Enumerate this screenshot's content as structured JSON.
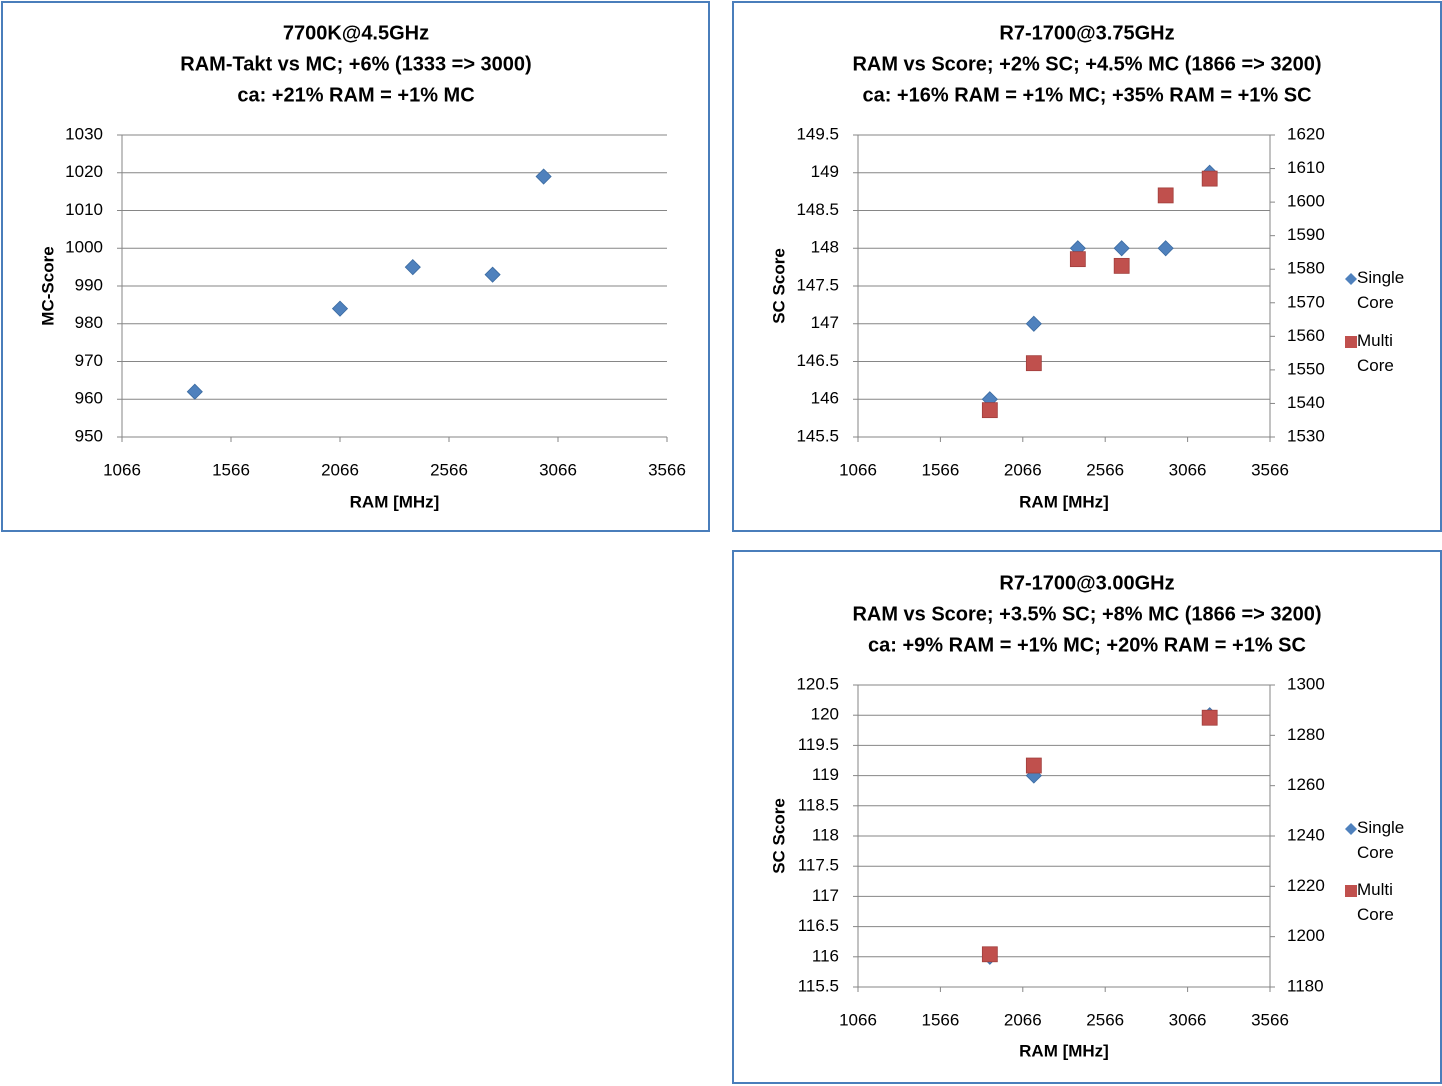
{
  "chart_data": [
    {
      "type": "scatter",
      "title_lines": [
        "7700K@4.5GHz",
        "RAM-Takt vs MC; +6% (1333 => 3000)",
        "ca: +21% RAM = +1% MC"
      ],
      "xlabel": "RAM [MHz]",
      "ylabel": "MC-Score",
      "y2label": "",
      "xlim": [
        1066,
        3566
      ],
      "xticks": [
        "1066",
        "1566",
        "2066",
        "2566",
        "3066",
        "3566"
      ],
      "ylim": [
        950,
        1030
      ],
      "yticks": [
        "950",
        "960",
        "970",
        "980",
        "990",
        "1000",
        "1010",
        "1020",
        "1030"
      ],
      "grid": true,
      "legend": [],
      "series": [
        {
          "name": "",
          "marker": "diamond",
          "color": "#4f81bd",
          "axis": "left",
          "x": [
            1400,
            2066,
            2400,
            2766,
            3000
          ],
          "y": [
            962,
            984,
            995,
            993,
            1019
          ]
        }
      ]
    },
    {
      "type": "scatter",
      "title_lines": [
        "R7-1700@3.75GHz",
        "RAM vs Score; +2% SC; +4.5% MC (1866 => 3200)",
        "ca: +16% RAM = +1% MC; +35% RAM = +1% SC"
      ],
      "xlabel": "RAM [MHz]",
      "ylabel": "SC Score",
      "y2label": "",
      "xlim": [
        1066,
        3566
      ],
      "xticks": [
        "1066",
        "1566",
        "2066",
        "2566",
        "3066",
        "3566"
      ],
      "ylim": [
        145.5,
        149.5
      ],
      "yticks": [
        "145.5",
        "146",
        "146.5",
        "147",
        "147.5",
        "148",
        "148.5",
        "149",
        "149.5"
      ],
      "y2lim": [
        1530,
        1620
      ],
      "y2ticks": [
        "1530",
        "1540",
        "1550",
        "1560",
        "1570",
        "1580",
        "1590",
        "1600",
        "1610",
        "1620"
      ],
      "grid": true,
      "legend": [
        "Single Core",
        "Multi Core"
      ],
      "series": [
        {
          "name": "Single Core",
          "marker": "diamond",
          "color": "#4f81bd",
          "axis": "left",
          "x": [
            1866,
            2133,
            2400,
            2666,
            2933,
            3200
          ],
          "y": [
            146,
            147,
            148,
            148,
            148,
            149
          ]
        },
        {
          "name": "Multi Core",
          "marker": "square",
          "color": "#c0504d",
          "axis": "right",
          "x": [
            1866,
            2133,
            2400,
            2666,
            2933,
            3200
          ],
          "y": [
            1538,
            1552,
            1583,
            1581,
            1602,
            1607
          ]
        }
      ]
    },
    {
      "type": "scatter",
      "title_lines": [
        "R7-1700@3.00GHz",
        "RAM vs Score; +3.5% SC; +8% MC (1866 => 3200)",
        "ca: +9% RAM = +1% MC; +20% RAM = +1% SC"
      ],
      "xlabel": "RAM [MHz]",
      "ylabel": "SC Score",
      "y2label": "",
      "xlim": [
        1066,
        3566
      ],
      "xticks": [
        "1066",
        "1566",
        "2066",
        "2566",
        "3066",
        "3566"
      ],
      "ylim": [
        115.5,
        120.5
      ],
      "yticks": [
        "115.5",
        "116",
        "116.5",
        "117",
        "117.5",
        "118",
        "118.5",
        "119",
        "119.5",
        "120",
        "120.5"
      ],
      "y2lim": [
        1180,
        1300
      ],
      "y2ticks": [
        "1180",
        "1200",
        "1220",
        "1240",
        "1260",
        "1280",
        "1300"
      ],
      "grid": true,
      "legend": [
        "Single Core",
        "Multi Core"
      ],
      "series": [
        {
          "name": "Single Core",
          "marker": "diamond",
          "color": "#4f81bd",
          "axis": "left",
          "x": [
            1866,
            2133,
            3200
          ],
          "y": [
            116,
            119,
            120
          ]
        },
        {
          "name": "Multi Core",
          "marker": "square",
          "color": "#c0504d",
          "axis": "right",
          "x": [
            1866,
            2133,
            3200
          ],
          "y": [
            1193,
            1268,
            1287
          ]
        }
      ]
    }
  ]
}
